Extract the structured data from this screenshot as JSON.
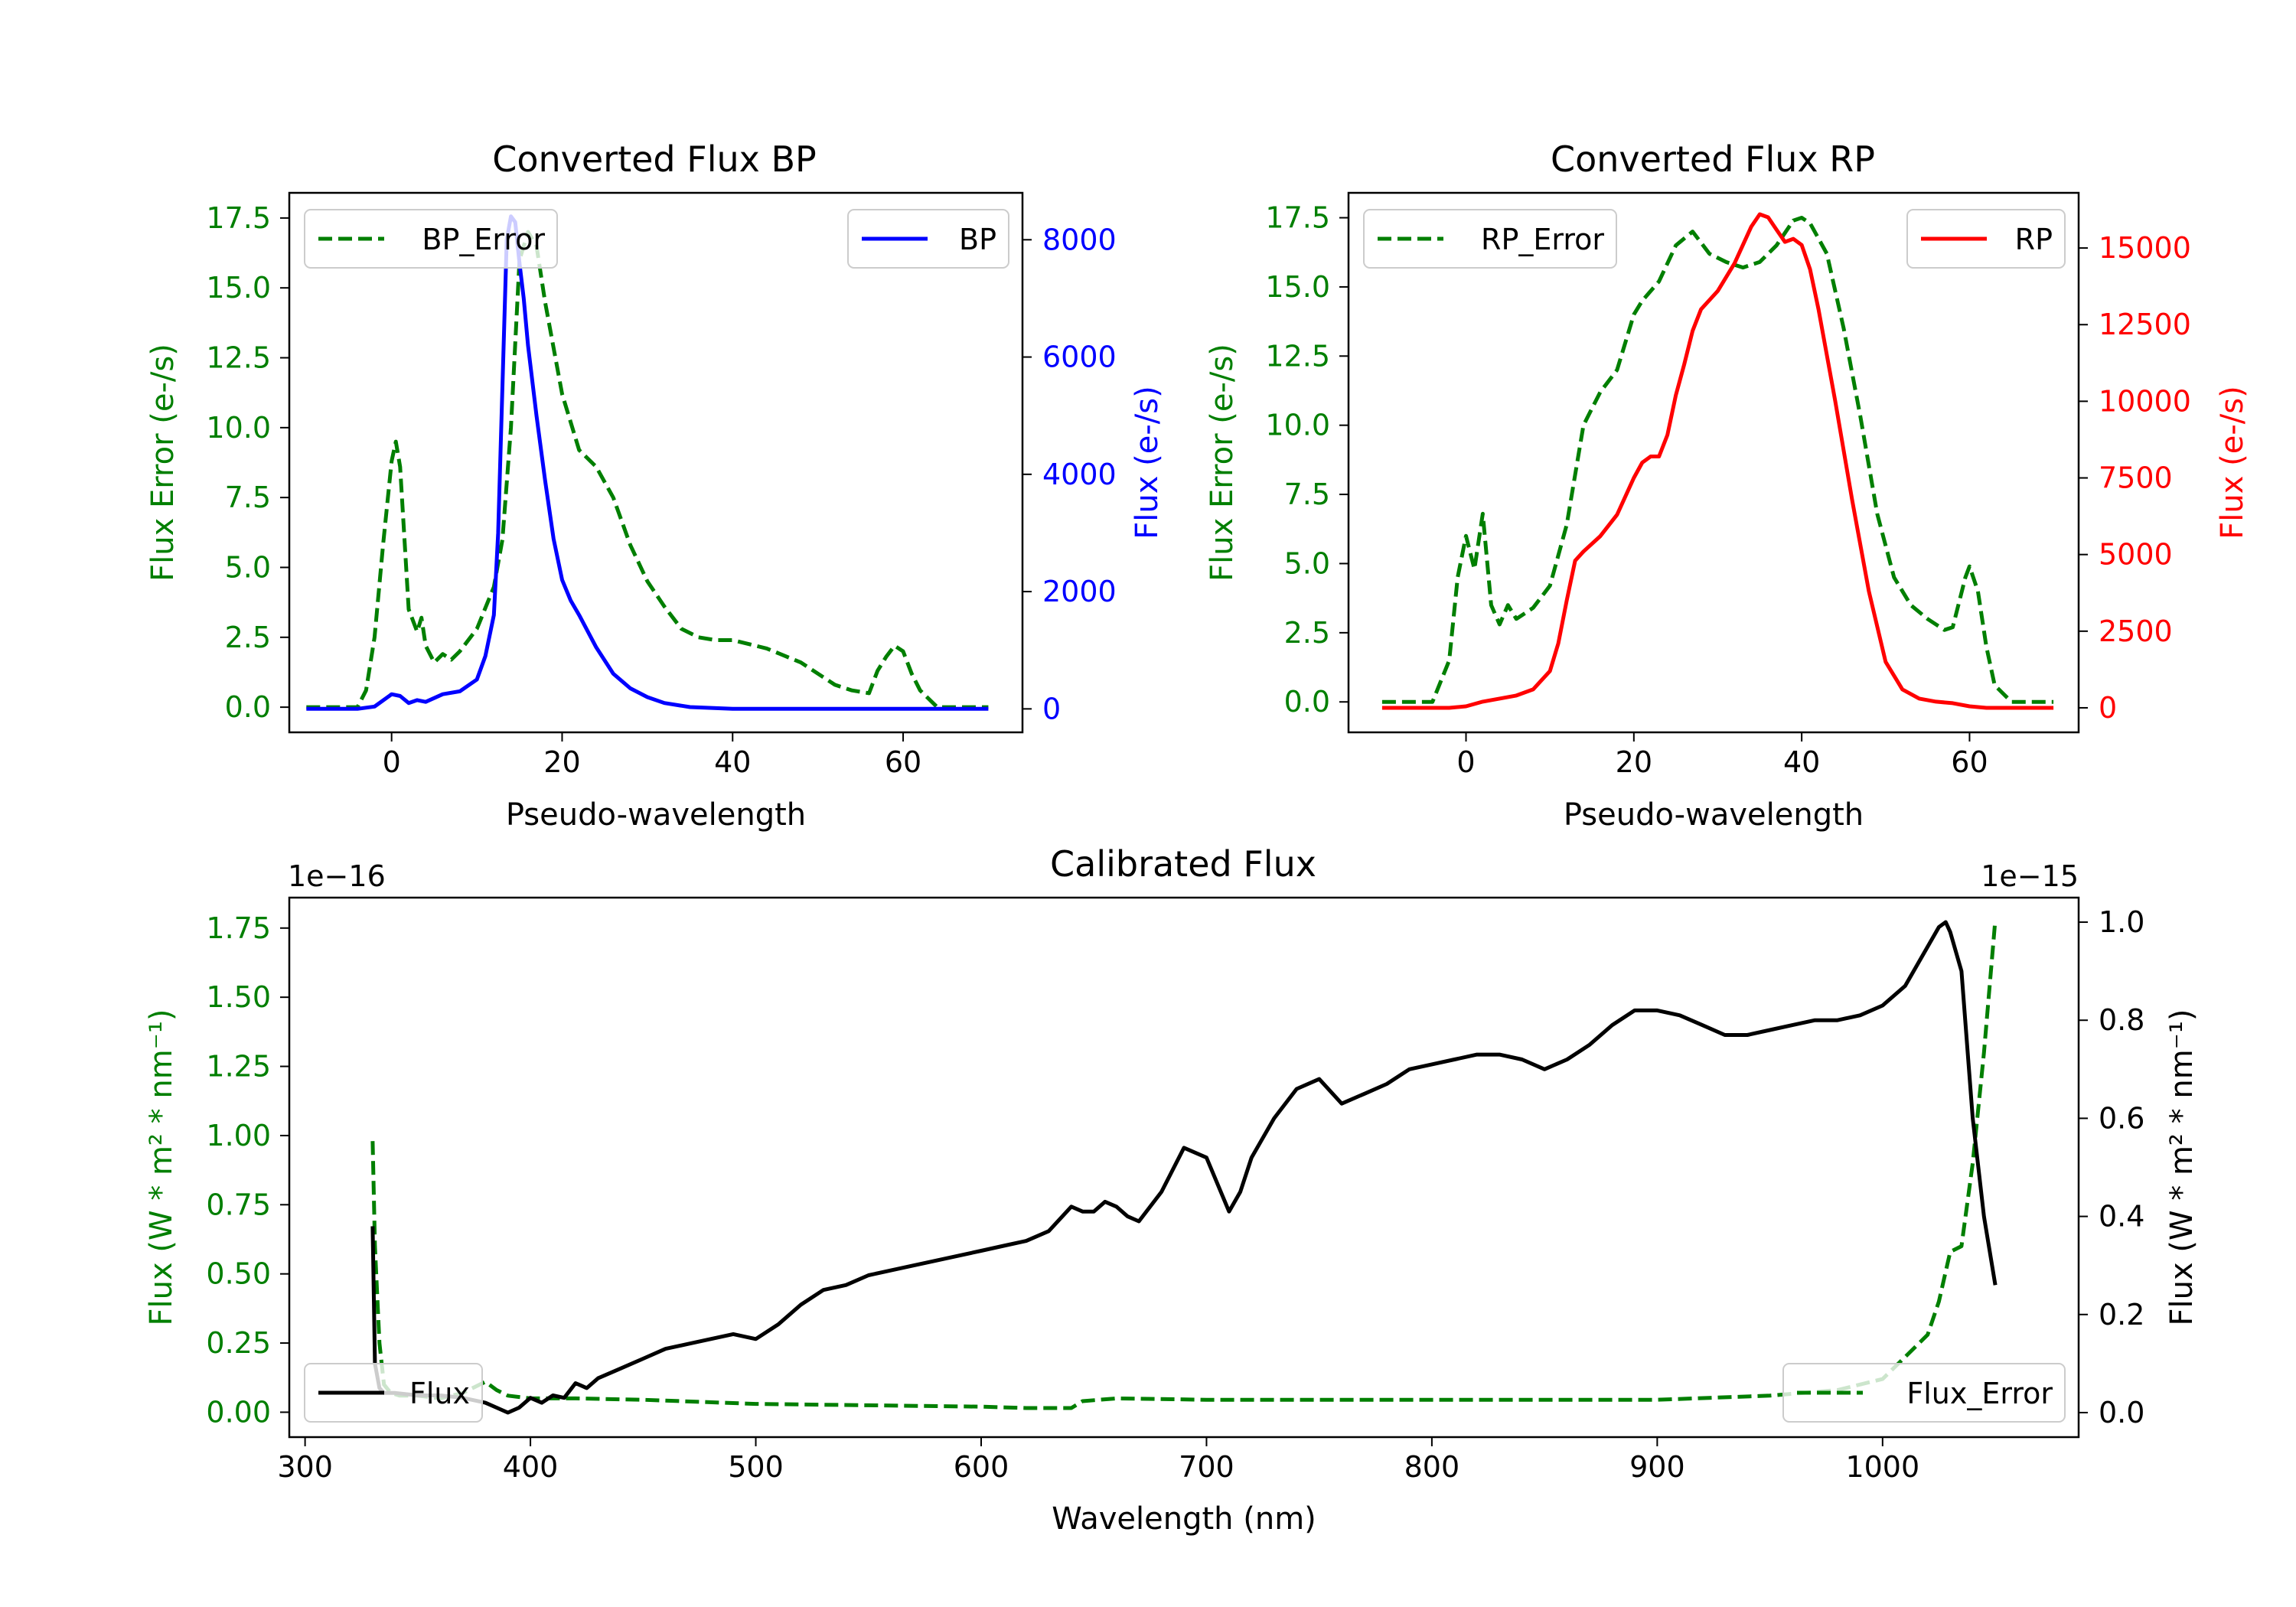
{
  "colors": {
    "green": "#007f00",
    "blue": "#0000ff",
    "red": "#ff0000",
    "black": "#000000"
  },
  "chart_data": [
    {
      "type": "line",
      "title": "Converted Flux BP",
      "xlabel": "Pseudo-wavelength",
      "xlim": [
        -12,
        74
      ],
      "x_ticks": [
        0,
        20,
        40,
        60
      ],
      "left_axis": {
        "label": "Flux Error (e-/s)",
        "color": "#007f00",
        "ylim": [
          -0.9,
          18.4
        ],
        "ticks": [
          0.0,
          2.5,
          5.0,
          7.5,
          10.0,
          12.5,
          15.0,
          17.5
        ],
        "tick_labels": [
          "0.0",
          "2.5",
          "5.0",
          "7.5",
          "10.0",
          "12.5",
          "15.0",
          "17.5"
        ]
      },
      "right_axis": {
        "label": "Flux (e-/s)",
        "color": "#0000ff",
        "ylim": [
          -400,
          8800
        ],
        "ticks": [
          0,
          2000,
          4000,
          6000,
          8000
        ],
        "tick_labels": [
          "0",
          "2000",
          "4000",
          "6000",
          "8000"
        ]
      },
      "legends": [
        {
          "label": "BP_Error",
          "style": "dashed",
          "color": "#007f00",
          "loc": "upper left"
        },
        {
          "label": "BP",
          "style": "solid",
          "color": "#0000ff",
          "loc": "upper right"
        }
      ],
      "series": [
        {
          "name": "BP_Error",
          "axis": "left",
          "style": "dashed",
          "color": "#007f00",
          "x": [
            -10,
            -4,
            -3,
            -2,
            -1,
            0,
            0.5,
            1,
            2,
            3,
            3.5,
            4,
            5,
            6,
            7,
            8,
            10,
            12,
            13,
            14,
            15,
            16,
            17,
            18,
            20,
            22,
            24,
            26,
            28,
            30,
            32,
            34,
            36,
            38,
            40,
            44,
            48,
            52,
            54,
            56,
            57,
            58,
            59,
            60,
            61,
            62,
            64,
            66,
            70
          ],
          "y": [
            0.0,
            0.0,
            0.6,
            2.5,
            5.8,
            8.8,
            9.5,
            8.6,
            3.5,
            2.7,
            3.2,
            2.2,
            1.6,
            1.9,
            1.7,
            2.0,
            2.8,
            4.3,
            6.0,
            10.0,
            16.0,
            17.0,
            16.5,
            14.5,
            11.2,
            9.2,
            8.6,
            7.5,
            5.8,
            4.5,
            3.6,
            2.8,
            2.5,
            2.4,
            2.4,
            2.1,
            1.6,
            0.8,
            0.6,
            0.5,
            1.3,
            1.8,
            2.2,
            2.0,
            1.2,
            0.6,
            0.0,
            0.0,
            0.0
          ]
        },
        {
          "name": "BP",
          "axis": "right",
          "style": "solid",
          "color": "#0000ff",
          "x": [
            -10,
            -4,
            -2,
            0,
            1,
            2,
            3,
            4,
            6,
            8,
            10,
            11,
            12,
            12.5,
            13,
            13.5,
            14,
            14.5,
            15,
            15.5,
            16,
            17,
            18,
            19,
            20,
            21,
            22,
            24,
            26,
            28,
            30,
            32,
            35,
            40,
            50,
            60,
            70
          ],
          "y": [
            0,
            0,
            40,
            250,
            220,
            100,
            150,
            120,
            250,
            300,
            500,
            900,
            1600,
            3000,
            5500,
            8000,
            8400,
            8300,
            7600,
            7000,
            6200,
            5000,
            3900,
            2900,
            2200,
            1850,
            1600,
            1050,
            600,
            350,
            200,
            100,
            30,
            0,
            0,
            0,
            0
          ]
        }
      ]
    },
    {
      "type": "line",
      "title": "Converted Flux RP",
      "xlabel": "Pseudo-wavelength",
      "xlim": [
        -14,
        73
      ],
      "x_ticks": [
        0,
        20,
        40,
        60
      ],
      "left_axis": {
        "label": "Flux Error (e-/s)",
        "color": "#007f00",
        "ylim": [
          -1.1,
          18.4
        ],
        "ticks": [
          0.0,
          2.5,
          5.0,
          7.5,
          10.0,
          12.5,
          15.0,
          17.5
        ],
        "tick_labels": [
          "0.0",
          "2.5",
          "5.0",
          "7.5",
          "10.0",
          "12.5",
          "15.0",
          "17.5"
        ]
      },
      "right_axis": {
        "label": "Flux (e-/s)",
        "color": "#ff0000",
        "ylim": [
          -800,
          16800
        ],
        "ticks": [
          0,
          2500,
          5000,
          7500,
          10000,
          12500,
          15000
        ],
        "tick_labels": [
          "0",
          "2500",
          "5000",
          "7500",
          "10000",
          "12500",
          "15000"
        ]
      },
      "legends": [
        {
          "label": "RP_Error",
          "style": "dashed",
          "color": "#007f00",
          "loc": "upper left"
        },
        {
          "label": "RP",
          "style": "solid",
          "color": "#ff0000",
          "loc": "upper right"
        }
      ],
      "series": [
        {
          "name": "RP_Error",
          "axis": "left",
          "style": "dashed",
          "color": "#007f00",
          "x": [
            -10,
            -4,
            -2,
            -1,
            0,
            1,
            2,
            3,
            4,
            5,
            6,
            8,
            10,
            12,
            14,
            16,
            18,
            20,
            21,
            23,
            25,
            27,
            29,
            31,
            33,
            35,
            37,
            39,
            40,
            41,
            43,
            45,
            47,
            49,
            51,
            53,
            55,
            57,
            58,
            59,
            59.5,
            60,
            61,
            62,
            63,
            65,
            70
          ],
          "y": [
            0.0,
            0.0,
            1.5,
            4.5,
            6.0,
            4.8,
            6.8,
            3.5,
            2.8,
            3.5,
            3.0,
            3.4,
            4.2,
            6.4,
            10.0,
            11.2,
            12.0,
            14.0,
            14.5,
            15.2,
            16.5,
            17.0,
            16.2,
            15.9,
            15.7,
            15.9,
            16.5,
            17.4,
            17.5,
            17.3,
            16.2,
            13.5,
            10.3,
            6.8,
            4.5,
            3.5,
            3.0,
            2.6,
            2.7,
            3.9,
            4.5,
            4.9,
            4.0,
            2.0,
            0.6,
            0.0,
            0.0
          ]
        },
        {
          "name": "RP",
          "axis": "right",
          "style": "solid",
          "color": "#ff0000",
          "x": [
            -10,
            -2,
            0,
            2,
            4,
            6,
            8,
            10,
            11,
            12,
            13,
            14,
            16,
            18,
            20,
            21,
            22,
            23,
            24,
            25,
            26,
            27,
            28,
            30,
            32,
            34,
            35,
            36,
            37,
            38,
            39,
            40,
            41,
            42,
            44,
            46,
            48,
            50,
            52,
            54,
            56,
            58,
            60,
            62,
            64,
            70
          ],
          "y": [
            0,
            0,
            50,
            200,
            300,
            400,
            600,
            1200,
            2100,
            3500,
            4800,
            5100,
            5600,
            6300,
            7500,
            8000,
            8200,
            8200,
            8900,
            10200,
            11200,
            12300,
            13000,
            13600,
            14500,
            15700,
            16100,
            16000,
            15600,
            15200,
            15300,
            15100,
            14300,
            13000,
            10000,
            6800,
            3800,
            1500,
            600,
            300,
            200,
            150,
            50,
            0,
            0,
            0
          ]
        }
      ]
    },
    {
      "type": "line",
      "title": "Calibrated Flux",
      "xlabel": "Wavelength (nm)",
      "xlim": [
        293,
        1087
      ],
      "x_ticks": [
        300,
        400,
        500,
        600,
        700,
        800,
        900,
        1000
      ],
      "left_axis": {
        "label": "Flux (W * m² * nm⁻¹)",
        "color": "#007f00",
        "multiplier": "1e−16",
        "ylim": [
          -0.09,
          1.86
        ],
        "ticks": [
          0.0,
          0.25,
          0.5,
          0.75,
          1.0,
          1.25,
          1.5,
          1.75
        ],
        "tick_labels": [
          "0.00",
          "0.25",
          "0.50",
          "0.75",
          "1.00",
          "1.25",
          "1.50",
          "1.75"
        ]
      },
      "right_axis": {
        "label": "Flux (W * m² * nm⁻¹)",
        "color": "#000000",
        "multiplier": "1e−15",
        "ylim": [
          -0.05,
          1.05
        ],
        "ticks": [
          0.0,
          0.2,
          0.4,
          0.6,
          0.8,
          1.0
        ],
        "tick_labels": [
          "0.0",
          "0.2",
          "0.4",
          "0.6",
          "0.8",
          "1.0"
        ]
      },
      "legends": [
        {
          "label": "Flux",
          "style": "solid",
          "color": "#000000",
          "loc": "lower left"
        },
        {
          "label": "Flux_Error",
          "style": "dashed",
          "color": "#007f00",
          "loc": "lower right"
        }
      ],
      "series": [
        {
          "name": "Flux_Error",
          "axis": "left",
          "style": "dashed",
          "color": "#007f00",
          "x": [
            330,
            331,
            333,
            335,
            338,
            342,
            350,
            360,
            370,
            380,
            385,
            390,
            400,
            420,
            450,
            500,
            550,
            600,
            620,
            640,
            645,
            660,
            700,
            800,
            900,
            950,
            980,
            1000,
            1010,
            1020,
            1025,
            1030,
            1035,
            1040,
            1045,
            1050
          ],
          "y": [
            0.98,
            0.6,
            0.25,
            0.1,
            0.07,
            0.06,
            0.06,
            0.05,
            0.07,
            0.11,
            0.08,
            0.06,
            0.05,
            0.05,
            0.045,
            0.03,
            0.025,
            0.02,
            0.015,
            0.015,
            0.04,
            0.05,
            0.045,
            0.045,
            0.045,
            0.06,
            0.08,
            0.12,
            0.2,
            0.28,
            0.4,
            0.58,
            0.6,
            0.9,
            1.3,
            1.78
          ]
        },
        {
          "name": "Flux",
          "axis": "right",
          "style": "solid",
          "color": "#000000",
          "x": [
            330,
            331,
            333,
            335,
            340,
            350,
            360,
            370,
            380,
            385,
            390,
            395,
            400,
            405,
            410,
            415,
            420,
            425,
            430,
            440,
            450,
            460,
            470,
            480,
            490,
            500,
            510,
            520,
            530,
            540,
            550,
            560,
            570,
            580,
            590,
            600,
            610,
            620,
            630,
            640,
            645,
            650,
            655,
            660,
            665,
            670,
            680,
            690,
            700,
            710,
            715,
            720,
            730,
            740,
            750,
            760,
            770,
            780,
            790,
            800,
            810,
            820,
            830,
            840,
            850,
            860,
            870,
            880,
            890,
            900,
            910,
            920,
            930,
            940,
            950,
            960,
            970,
            980,
            990,
            1000,
            1010,
            1020,
            1025,
            1028,
            1030,
            1035,
            1040,
            1045,
            1050
          ],
          "y": [
            0.38,
            0.1,
            0.05,
            0.04,
            0.04,
            0.035,
            0.035,
            0.03,
            0.02,
            0.01,
            0.0,
            0.01,
            0.03,
            0.02,
            0.035,
            0.03,
            0.06,
            0.05,
            0.07,
            0.09,
            0.11,
            0.13,
            0.14,
            0.15,
            0.16,
            0.15,
            0.18,
            0.22,
            0.25,
            0.26,
            0.28,
            0.29,
            0.3,
            0.31,
            0.32,
            0.33,
            0.34,
            0.35,
            0.37,
            0.42,
            0.41,
            0.41,
            0.43,
            0.42,
            0.4,
            0.39,
            0.45,
            0.54,
            0.52,
            0.41,
            0.45,
            0.52,
            0.6,
            0.66,
            0.68,
            0.63,
            0.65,
            0.67,
            0.7,
            0.71,
            0.72,
            0.73,
            0.73,
            0.72,
            0.7,
            0.72,
            0.75,
            0.79,
            0.82,
            0.82,
            0.81,
            0.79,
            0.77,
            0.77,
            0.78,
            0.79,
            0.8,
            0.8,
            0.81,
            0.83,
            0.87,
            0.95,
            0.99,
            1.0,
            0.98,
            0.9,
            0.6,
            0.4,
            0.26
          ]
        }
      ]
    }
  ]
}
